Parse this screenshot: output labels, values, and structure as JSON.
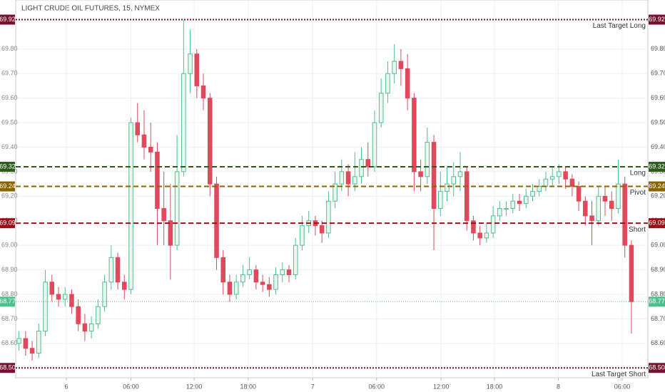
{
  "chart_data": {
    "type": "candlestick",
    "title": "LIGHT CRUDE OIL FUTURES, 15, NYMEX",
    "up_color": "#4fbf8f",
    "down_color": "#e0495c",
    "grid": true,
    "xlim": [
      0,
      96
    ],
    "xticks": [
      {
        "value": 7.7,
        "label": "6"
      },
      {
        "value": 17.5,
        "label": "06:00"
      },
      {
        "value": 27.1,
        "label": "12:00"
      },
      {
        "value": 35.3,
        "label": "18:00"
      },
      {
        "value": 45.1,
        "label": "7"
      },
      {
        "value": 54.8,
        "label": "06:00"
      },
      {
        "value": 64.6,
        "label": "12:00"
      },
      {
        "value": 72.7,
        "label": "18:00"
      },
      {
        "value": 82.4,
        "label": "8"
      },
      {
        "value": 92.1,
        "label": "06:00"
      }
    ],
    "ylim": [
      68.46,
      70.0
    ],
    "yticks": [
      {
        "value": 68.6,
        "label": "68.60"
      },
      {
        "value": 68.7,
        "label": "68.70"
      },
      {
        "value": 68.8,
        "label": "68.80"
      },
      {
        "value": 68.9,
        "label": "68.90"
      },
      {
        "value": 69.0,
        "label": "69.00"
      },
      {
        "value": 69.1,
        "label": "69.10"
      },
      {
        "value": 69.2,
        "label": "69.20"
      },
      {
        "value": 69.3,
        "label": "69.30"
      },
      {
        "value": 69.4,
        "label": "69.40"
      },
      {
        "value": 69.5,
        "label": "69.50"
      },
      {
        "value": 69.6,
        "label": "69.60"
      },
      {
        "value": 69.7,
        "label": "69.70"
      },
      {
        "value": 69.8,
        "label": "69.80"
      }
    ],
    "open": [
      68.6,
      68.62,
      68.58,
      68.56,
      68.65,
      68.85,
      68.8,
      68.78,
      68.8,
      68.75,
      68.68,
      68.65,
      68.68,
      68.75,
      68.85,
      68.95,
      68.85,
      68.82,
      69.5,
      69.45,
      69.4,
      69.38,
      69.15,
      69.1,
      69.0,
      69.3,
      69.7,
      69.78,
      69.65,
      69.6,
      69.25,
      68.95,
      68.85,
      68.8,
      68.85,
      68.88,
      68.9,
      68.85,
      68.84,
      68.82,
      68.88,
      68.9,
      68.88,
      69.0,
      69.08,
      69.1,
      69.08,
      69.05,
      69.18,
      69.25,
      69.3,
      69.25,
      69.28,
      69.35,
      69.32,
      69.5,
      69.62,
      69.7,
      69.75,
      69.72,
      69.6,
      69.3,
      69.28,
      69.42,
      69.15,
      69.22,
      69.25,
      69.28,
      69.3,
      69.1,
      69.05,
      69.03,
      69.05,
      69.12,
      69.15,
      69.15,
      69.18,
      69.17,
      69.2,
      69.22,
      69.24,
      69.27,
      69.28,
      69.3,
      69.27,
      69.24,
      69.18,
      69.12,
      69.1,
      69.2,
      69.18,
      69.15,
      69.25,
      69.0
    ],
    "high": [
      68.65,
      68.65,
      68.61,
      68.68,
      68.9,
      68.88,
      68.83,
      68.83,
      68.82,
      68.78,
      68.72,
      68.71,
      68.78,
      68.88,
      69.0,
      68.97,
      68.88,
      69.52,
      69.58,
      69.55,
      69.5,
      69.42,
      69.3,
      69.25,
      69.45,
      69.92,
      69.88,
      69.8,
      69.7,
      69.62,
      69.28,
      68.98,
      68.88,
      68.88,
      68.92,
      68.95,
      68.92,
      68.88,
      68.87,
      68.91,
      68.93,
      68.92,
      69.03,
      69.12,
      69.14,
      69.12,
      69.1,
      69.22,
      69.3,
      69.35,
      69.33,
      69.38,
      69.4,
      69.42,
      69.55,
      69.68,
      69.75,
      69.82,
      69.8,
      69.78,
      69.62,
      69.35,
      69.48,
      69.45,
      69.3,
      69.32,
      69.34,
      69.38,
      69.32,
      69.12,
      69.08,
      69.09,
      69.16,
      69.18,
      69.18,
      69.21,
      69.21,
      69.23,
      69.25,
      69.27,
      69.3,
      69.32,
      69.33,
      69.32,
      69.29,
      69.26,
      69.2,
      69.18,
      69.24,
      69.24,
      69.22,
      69.35,
      69.28,
      69.02
    ],
    "low": [
      68.57,
      68.55,
      68.53,
      68.54,
      68.63,
      68.77,
      68.75,
      68.75,
      68.72,
      68.65,
      68.61,
      68.62,
      68.66,
      68.73,
      68.82,
      68.82,
      68.78,
      68.8,
      69.42,
      69.35,
      69.3,
      69.0,
      69.0,
      68.86,
      68.98,
      69.28,
      69.62,
      69.6,
      69.55,
      69.2,
      68.9,
      68.8,
      68.77,
      68.78,
      68.83,
      68.86,
      68.82,
      68.81,
      68.79,
      68.8,
      68.85,
      68.85,
      68.86,
      68.98,
      69.05,
      69.04,
      69.01,
      69.03,
      69.15,
      69.22,
      69.2,
      69.22,
      69.25,
      69.28,
      69.3,
      69.48,
      69.58,
      69.66,
      69.65,
      69.55,
      69.22,
      69.22,
      69.25,
      68.98,
      69.12,
      69.18,
      69.2,
      69.22,
      69.06,
      69.02,
      69.0,
      69.01,
      69.03,
      69.1,
      69.12,
      69.13,
      69.14,
      69.15,
      69.18,
      69.2,
      69.22,
      69.24,
      69.25,
      69.23,
      69.2,
      69.14,
      69.08,
      69.0,
      69.08,
      69.12,
      69.1,
      69.13,
      68.95,
      68.64
    ],
    "close": [
      68.62,
      68.58,
      68.56,
      68.65,
      68.85,
      68.8,
      68.78,
      68.8,
      68.75,
      68.68,
      68.65,
      68.68,
      68.75,
      68.85,
      68.95,
      68.85,
      68.82,
      69.5,
      69.45,
      69.4,
      69.38,
      69.15,
      69.1,
      69.0,
      69.3,
      69.7,
      69.78,
      69.65,
      69.6,
      69.25,
      68.95,
      68.85,
      68.8,
      68.85,
      68.88,
      68.9,
      68.85,
      68.84,
      68.82,
      68.88,
      68.9,
      68.88,
      69.0,
      69.08,
      69.1,
      69.08,
      69.05,
      69.18,
      69.25,
      69.3,
      69.25,
      69.28,
      69.35,
      69.32,
      69.5,
      69.62,
      69.7,
      69.75,
      69.72,
      69.6,
      69.3,
      69.28,
      69.42,
      69.15,
      69.22,
      69.25,
      69.28,
      69.3,
      69.1,
      69.05,
      69.03,
      69.05,
      69.12,
      69.15,
      69.15,
      69.18,
      69.17,
      69.2,
      69.22,
      69.24,
      69.27,
      69.28,
      69.3,
      69.27,
      69.24,
      69.18,
      69.12,
      69.1,
      69.2,
      69.18,
      69.15,
      69.25,
      69.0,
      68.77
    ],
    "levels": [
      {
        "name": "Last Target Long",
        "value": 69.92,
        "value_label": "69.92",
        "color": "#7a1030",
        "style": "dotted"
      },
      {
        "name": "Long",
        "value": 69.32,
        "value_label": "69.32",
        "color": "#2f5a1e",
        "style": "dashed"
      },
      {
        "name": "Pivot",
        "value": 69.24,
        "value_label": "69.24",
        "color": "#8a6400",
        "style": "dashed"
      },
      {
        "name": "Short",
        "value": 69.09,
        "value_label": "69.09",
        "color": "#9b1018",
        "style": "dashed"
      },
      {
        "name": "Last Target Short",
        "value": 68.5,
        "value_label": "68.50",
        "color": "#7a1030",
        "style": "dotted"
      }
    ],
    "last_price": {
      "value": 68.77,
      "label": "68.77",
      "color": "#4fbf8f"
    }
  }
}
